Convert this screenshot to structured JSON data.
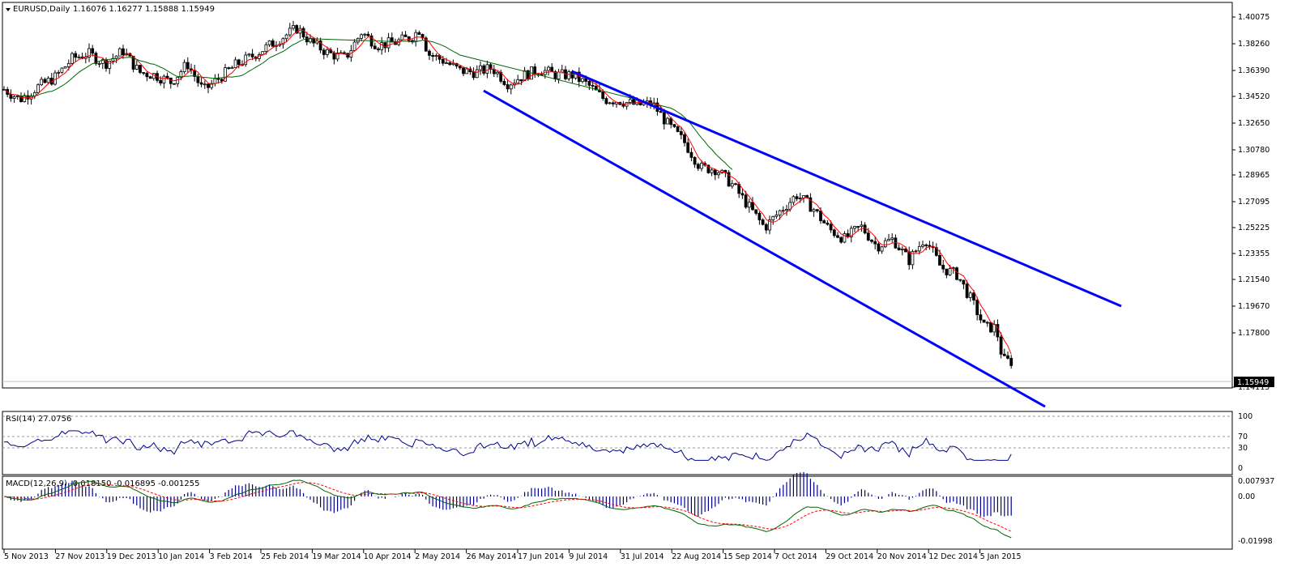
{
  "header": {
    "symbol": "EURUSD,Daily",
    "ohlc": "1.16076 1.16277 1.15888 1.15949"
  },
  "colors": {
    "ma_fast": "#ff0000",
    "ma_slow": "#006400",
    "ma_mid": "#c8a000",
    "channel": "#0000ff",
    "rsi": "#00008b",
    "macd_line": "#006400",
    "macd_signal": "#ff0000",
    "macd_hist": "#00008b"
  },
  "price_axis": {
    "ticks": [
      "1.40075",
      "1.38260",
      "1.36390",
      "1.34520",
      "1.32650",
      "1.30780",
      "1.28965",
      "1.27095",
      "1.25225",
      "1.23355",
      "1.21540",
      "1.19670",
      "1.17800",
      "1.14115"
    ],
    "current": "1.15949"
  },
  "rsi": {
    "label": "RSI(14) 27.0756",
    "ticks": [
      "100",
      "70",
      "30",
      "0"
    ]
  },
  "macd": {
    "label": "MACD(12,26,9) -0.018150 -0.016895 -0.001255",
    "ticks": [
      "0.007937",
      "0.00",
      "-0.01998"
    ]
  },
  "x_axis": {
    "labels": [
      "5 Nov 2013",
      "27 Nov 2013",
      "19 Dec 2013",
      "10 Jan 2014",
      "3 Feb 2014",
      "25 Feb 2014",
      "19 Mar 2014",
      "10 Apr 2014",
      "2 May 2014",
      "26 May 2014",
      "17 Jun 2014",
      "9 Jul 2014",
      "31 Jul 2014",
      "22 Aug 2014",
      "15 Sep 2014",
      "7 Oct 2014",
      "29 Oct 2014",
      "20 Nov 2014",
      "12 Dec 2014",
      "5 Jan 2015"
    ]
  },
  "chart_data": {
    "type": "candlestick",
    "title": "EURUSD,Daily",
    "price_range": [
      1.13,
      1.405
    ],
    "close_path": [
      [
        "2013-11-05",
        1.35
      ],
      [
        "2013-11-12",
        1.343
      ],
      [
        "2013-11-20",
        1.352
      ],
      [
        "2013-11-27",
        1.358
      ],
      [
        "2013-12-05",
        1.372
      ],
      [
        "2013-12-12",
        1.375
      ],
      [
        "2013-12-19",
        1.368
      ],
      [
        "2013-12-27",
        1.377
      ],
      [
        "2014-01-03",
        1.362
      ],
      [
        "2014-01-10",
        1.36
      ],
      [
        "2014-01-17",
        1.355
      ],
      [
        "2014-01-24",
        1.368
      ],
      [
        "2014-01-31",
        1.349
      ],
      [
        "2014-02-07",
        1.358
      ],
      [
        "2014-02-14",
        1.367
      ],
      [
        "2014-02-21",
        1.373
      ],
      [
        "2014-02-28",
        1.38
      ],
      [
        "2014-03-07",
        1.387
      ],
      [
        "2014-03-13",
        1.393
      ],
      [
        "2014-03-19",
        1.383
      ],
      [
        "2014-03-27",
        1.375
      ],
      [
        "2014-04-03",
        1.372
      ],
      [
        "2014-04-10",
        1.39
      ],
      [
        "2014-04-17",
        1.381
      ],
      [
        "2014-04-25",
        1.383
      ],
      [
        "2014-05-02",
        1.387
      ],
      [
        "2014-05-06",
        1.393
      ],
      [
        "2014-05-09",
        1.375
      ],
      [
        "2014-05-16",
        1.37
      ],
      [
        "2014-05-23",
        1.363
      ],
      [
        "2014-05-30",
        1.362
      ],
      [
        "2014-06-06",
        1.365
      ],
      [
        "2014-06-13",
        1.354
      ],
      [
        "2014-06-20",
        1.36
      ],
      [
        "2014-06-27",
        1.364
      ],
      [
        "2014-07-04",
        1.36
      ],
      [
        "2014-07-11",
        1.36
      ],
      [
        "2014-07-18",
        1.353
      ],
      [
        "2014-07-25",
        1.343
      ],
      [
        "2014-08-01",
        1.342
      ],
      [
        "2014-08-08",
        1.339
      ],
      [
        "2014-08-15",
        1.34
      ],
      [
        "2014-08-22",
        1.325
      ],
      [
        "2014-08-29",
        1.313
      ],
      [
        "2014-09-05",
        1.295
      ],
      [
        "2014-09-12",
        1.294
      ],
      [
        "2014-09-19",
        1.283
      ],
      [
        "2014-09-26",
        1.268
      ],
      [
        "2014-10-03",
        1.253
      ],
      [
        "2014-10-10",
        1.265
      ],
      [
        "2014-10-17",
        1.276
      ],
      [
        "2014-10-24",
        1.267
      ],
      [
        "2014-10-31",
        1.252
      ],
      [
        "2014-11-07",
        1.245
      ],
      [
        "2014-11-14",
        1.254
      ],
      [
        "2014-11-21",
        1.24
      ],
      [
        "2014-11-28",
        1.245
      ],
      [
        "2014-12-05",
        1.23
      ],
      [
        "2014-12-12",
        1.246
      ],
      [
        "2014-12-19",
        1.225
      ],
      [
        "2014-12-26",
        1.22
      ],
      [
        "2015-01-02",
        1.2
      ],
      [
        "2015-01-07",
        1.183
      ],
      [
        "2015-01-12",
        1.183
      ],
      [
        "2015-01-15",
        1.16
      ],
      [
        "2015-01-19",
        1.159
      ]
    ],
    "indicators": [
      "MA fast (red)",
      "MA slow (green)",
      "RSI(14)",
      "MACD(12,26,9)"
    ],
    "rsi_last": 27.0756,
    "macd_last": {
      "macd": -0.01815,
      "signal": -0.016895,
      "hist": -0.001255
    }
  }
}
